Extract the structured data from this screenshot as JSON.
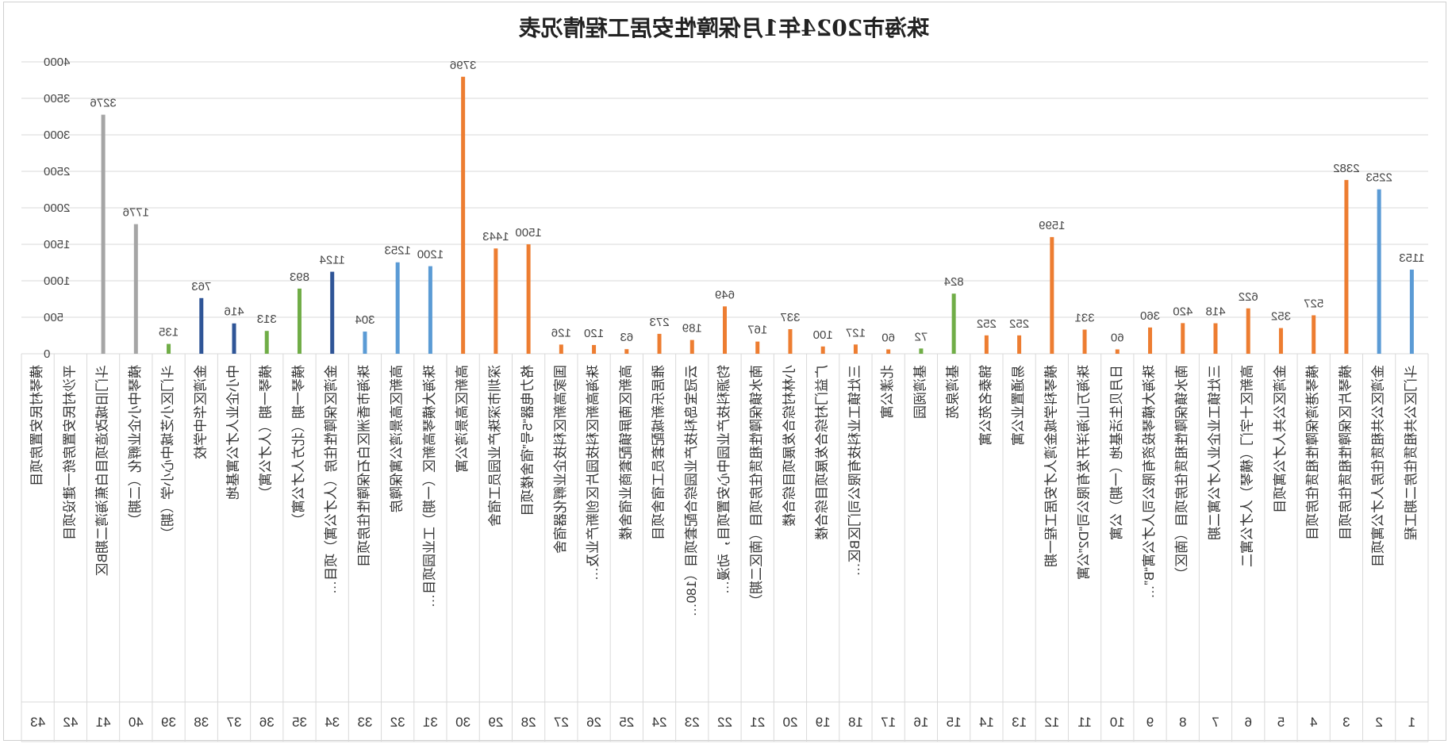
{
  "chart_data": {
    "type": "bar",
    "title": "珠海市2024年1月保障性安居工程情况表",
    "ylim": [
      0,
      4000
    ],
    "yticks": [
      0,
      500,
      1000,
      1500,
      2000,
      2500,
      3000,
      3500,
      4000
    ],
    "grid": true,
    "mirrored": true,
    "series_colors": {
      "blue": "#5b9bd5",
      "orange": "#ed7d31",
      "gray": "#a5a5a5",
      "green": "#70ad47",
      "darkblue": "#2f5597"
    },
    "items": [
      {
        "index": "1",
        "label": "斗门区公共租赁住房二期工程",
        "value": 1153,
        "color": "blue"
      },
      {
        "index": "2",
        "label": "金湾区公共租赁住房人才公寓项目",
        "value": 2253,
        "color": "blue"
      },
      {
        "index": "3",
        "label": "横琴片区保障性租赁住房项目",
        "value": 2382,
        "color": "orange"
      },
      {
        "index": "4",
        "label": "横琴港湾保障性租赁住房项目",
        "value": 527,
        "color": "orange"
      },
      {
        "index": "5",
        "label": "金湾区公共人才公寓项目",
        "value": 352,
        "color": "orange"
      },
      {
        "index": "6",
        "label": "高新区十字门（横琴）人才公寓二",
        "value": 622,
        "color": "orange"
      },
      {
        "index": "7",
        "label": "三灶镇工业企业人才公寓二期",
        "value": 418,
        "color": "orange"
      },
      {
        "index": "8",
        "label": "南水镇保障性租赁住房项目（南区）",
        "value": 420,
        "color": "orange"
      },
      {
        "index": "9",
        "label": "珠海大横琴投资有限公司人才公寓“B”…",
        "value": 360,
        "color": "orange"
      },
      {
        "index": "10",
        "label": "日月贝生活基地（一期）公寓",
        "value": 60,
        "color": "orange"
      },
      {
        "index": "11",
        "label": "珠海万山海洋开发有限公司“D2”公寓",
        "value": 331,
        "color": "orange"
      },
      {
        "index": "12",
        "label": "横琴科学城金湾人才安居工程一期",
        "value": 1599,
        "color": "orange"
      },
      {
        "index": "13",
        "label": "易通置业公寓",
        "value": 252,
        "color": "orange"
      },
      {
        "index": "14",
        "label": "锦泰名苑公寓",
        "value": 252,
        "color": "orange"
      },
      {
        "index": "15",
        "label": "基湾泉苑",
        "value": 824,
        "color": "green"
      },
      {
        "index": "16",
        "label": "基湾阅园",
        "value": 72,
        "color": "green"
      },
      {
        "index": "17",
        "label": "北漾公寓",
        "value": 60,
        "color": "orange"
      },
      {
        "index": "18",
        "label": "三灶镇工业科技有限公司门区B区…",
        "value": 127,
        "color": "orange"
      },
      {
        "index": "19",
        "label": "广益门村综合发展项目综合楼",
        "value": 100,
        "color": "orange"
      },
      {
        "index": "20",
        "label": "小林村综合发展项目综合楼",
        "value": 337,
        "color": "orange"
      },
      {
        "index": "21",
        "label": "南水镇保障性租赁住房项目（南区二期）",
        "value": 167,
        "color": "orange"
      },
      {
        "index": "22",
        "label": "钧源科技产业园中心安置项目，动漫…",
        "value": 649,
        "color": "orange"
      },
      {
        "index": "23",
        "label": "云冠宝岛科技产业园综合配套项目（180…",
        "value": 189,
        "color": "orange"
      },
      {
        "index": "24",
        "label": "雅居乐新城配套员工宿舍项目",
        "value": 273,
        "color": "orange"
      },
      {
        "index": "25",
        "label": "高新区南屏镇配套商业宿舍楼",
        "value": 63,
        "color": "orange"
      },
      {
        "index": "26",
        "label": "珠海高新区科技园片区创新产业及…",
        "value": 120,
        "color": "orange"
      },
      {
        "index": "27",
        "label": "国家高新区科技企业孵化器宿舍",
        "value": 126,
        "color": "orange"
      },
      {
        "index": "28",
        "label": "格力电器“5号”宿舍楼项目",
        "value": 1500,
        "color": "orange"
      },
      {
        "index": "29",
        "label": "深圳市深珠产业园员工宿舍",
        "value": 1443,
        "color": "orange"
      },
      {
        "index": "30",
        "label": "高新区高景湾公寓",
        "value": 3796,
        "color": "orange"
      },
      {
        "index": "31",
        "label": "珠海大横琴高新区（一期）工业园项目…",
        "value": 1200,
        "color": "blue"
      },
      {
        "index": "32",
        "label": "高新区高景湾公寓保障房",
        "value": 1253,
        "color": "blue"
      },
      {
        "index": "33",
        "label": "珠海市香洲区白石保障性住房项目",
        "value": 304,
        "color": "blue"
      },
      {
        "index": "34",
        "label": "金湾区保障性住房（人才公寓）项目…",
        "value": 1124,
        "color": "darkblue"
      },
      {
        "index": "35",
        "label": "横琴一期（北方人才公寓）",
        "value": 893,
        "color": "green"
      },
      {
        "index": "36",
        "label": "横琴一期（人才公寓）",
        "value": 313,
        "color": "green"
      },
      {
        "index": "37",
        "label": "中小企业人才公寓基地",
        "value": 416,
        "color": "darkblue"
      },
      {
        "index": "38",
        "label": "金湾区华中学校",
        "value": 763,
        "color": "darkblue"
      },
      {
        "index": "39",
        "label": "斗门区小芝城中心小学（期）",
        "value": 135,
        "color": "green"
      },
      {
        "index": "40",
        "label": "横琴中小企业孵化（二期）",
        "value": 1776,
        "color": "gray"
      },
      {
        "index": "41",
        "label": "斗门旧城改造项目白蕉海湾二期B区",
        "value": 3276,
        "color": "gray"
      },
      {
        "index": "42",
        "label": "平沙村民安置房统一建设项目",
        "value": 0,
        "color": "gray"
      },
      {
        "index": "43",
        "label": "横琴村民安置房项目",
        "value": 0,
        "color": "gray"
      }
    ]
  }
}
